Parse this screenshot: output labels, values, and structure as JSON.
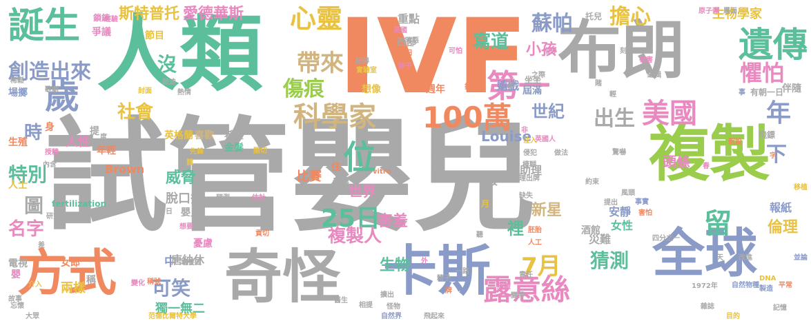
{
  "colors": {
    "gray": "#a9a9a9",
    "orange": "#f08860",
    "teal": "#5cbf9b",
    "blue": "#8a9bc8",
    "green": "#9acd4c",
    "pink": "#e889c0",
    "yellow": "#e8c240",
    "tan": "#d2b57e"
  },
  "words": [
    {
      "text": "試管嬰兒",
      "color": "gray"
    },
    {
      "text": "IVF",
      "color": "orange"
    },
    {
      "text": "人類",
      "color": "teal"
    },
    {
      "text": "布朗",
      "color": "gray"
    },
    {
      "text": "複製",
      "color": "green"
    },
    {
      "text": "奇怪",
      "color": "gray"
    },
    {
      "text": "卡斯",
      "color": "blue"
    },
    {
      "text": "全球",
      "color": "blue"
    },
    {
      "text": "方式",
      "color": "orange"
    },
    {
      "text": "遺傳",
      "color": "teal"
    },
    {
      "text": "誕生",
      "color": "teal"
    },
    {
      "text": "歲",
      "color": "blue"
    },
    {
      "text": "美國",
      "color": "pink"
    },
    {
      "text": "位",
      "color": "teal"
    },
    {
      "text": "第一",
      "color": "pink"
    },
    {
      "text": "100萬",
      "color": "orange"
    },
    {
      "text": "科學家",
      "color": "tan"
    },
    {
      "text": "露意絲",
      "color": "pink"
    },
    {
      "text": "心靈",
      "color": "yellow"
    },
    {
      "text": "留",
      "color": "teal"
    },
    {
      "text": "25日",
      "color": "teal"
    },
    {
      "text": "7月",
      "color": "yellow"
    },
    {
      "text": "創造出來",
      "color": "blue"
    },
    {
      "text": "斯特普托",
      "color": "yellow"
    },
    {
      "text": "愛德華斯",
      "color": "pink"
    },
    {
      "text": "帶來",
      "color": "tan"
    },
    {
      "text": "傷痕",
      "color": "green"
    },
    {
      "text": "蘇帕",
      "color": "blue"
    },
    {
      "text": "擔心",
      "color": "yellow"
    },
    {
      "text": "懼怕",
      "color": "pink"
    },
    {
      "text": "年",
      "color": "blue"
    },
    {
      "text": "出生",
      "color": "gray"
    },
    {
      "text": "下",
      "color": "blue"
    },
    {
      "text": "特別",
      "color": "teal"
    },
    {
      "text": "名字",
      "color": "pink"
    },
    {
      "text": "猜測",
      "color": "teal"
    },
    {
      "text": "可笑",
      "color": "blue"
    },
    {
      "text": "複製人",
      "color": "pink"
    },
    {
      "text": "世紀",
      "color": "blue"
    },
    {
      "text": "威脅",
      "color": "teal"
    },
    {
      "text": "新星",
      "color": "tan"
    },
    {
      "text": "生物",
      "color": "teal"
    },
    {
      "text": "倫理",
      "color": "yellow"
    },
    {
      "text": "社會",
      "color": "yellow"
    },
    {
      "text": "時",
      "color": "blue"
    },
    {
      "text": "沒",
      "color": "teal"
    },
    {
      "text": "圖",
      "color": "gray"
    },
    {
      "text": "寫道",
      "color": "teal"
    },
    {
      "text": "小孩",
      "color": "pink"
    },
    {
      "text": "生物學家",
      "color": "yellow"
    },
    {
      "text": "頭條",
      "color": "pink"
    },
    {
      "text": "世界",
      "color": "pink"
    },
    {
      "text": "裡",
      "color": "teal"
    },
    {
      "text": "害羞",
      "color": "pink"
    },
    {
      "text": "安靜",
      "color": "blue"
    },
    {
      "text": "女性",
      "color": "teal"
    },
    {
      "text": "報紙",
      "color": "blue"
    },
    {
      "text": "兩樣",
      "color": "yellow"
    },
    {
      "text": "獨一無二",
      "color": "teal"
    },
    {
      "text": "中",
      "color": "blue"
    },
    {
      "text": "英格蘭",
      "color": "yellow"
    },
    {
      "text": "喜歡",
      "color": "tan"
    },
    {
      "text": "希望",
      "color": "gray"
    },
    {
      "text": "人性",
      "color": "pink"
    },
    {
      "text": "生殖",
      "color": "orange"
    },
    {
      "text": "場擲",
      "color": "blue"
    },
    {
      "text": "脫口秀",
      "color": "gray"
    },
    {
      "text": "嬰兒",
      "color": "gray"
    },
    {
      "text": "憂慮",
      "color": "pink"
    },
    {
      "text": "唐納休",
      "color": "gray"
    },
    {
      "text": "女郎",
      "color": "orange"
    },
    {
      "text": "電視",
      "color": "gray"
    },
    {
      "text": "人士",
      "color": "yellow"
    },
    {
      "text": "比賽",
      "color": "orange"
    },
    {
      "text": "住",
      "color": "orange"
    },
    {
      "text": "酒館",
      "color": "gray"
    },
    {
      "text": "嬉戲",
      "color": "blue"
    },
    {
      "text": "屆滿",
      "color": "blue"
    },
    {
      "text": "助理",
      "color": "gray"
    },
    {
      "text": "有朝一日",
      "color": "gray"
    },
    {
      "text": "飛鏢",
      "color": "gray"
    },
    {
      "text": "伴隨",
      "color": "gray"
    },
    {
      "text": "災難",
      "color": "gray"
    },
    {
      "text": "Louise",
      "color": "blue"
    },
    {
      "text": "Brown",
      "color": "orange"
    },
    {
      "text": "金髮",
      "color": "teal"
    },
    {
      "text": "年輕",
      "color": "orange"
    },
    {
      "text": "稱",
      "color": "gray"
    },
    {
      "text": "身",
      "color": "orange"
    },
    {
      "text": "節目",
      "color": "yellow"
    },
    {
      "text": "爭議",
      "color": "pink"
    },
    {
      "text": "鎖鍊",
      "color": "pink"
    },
    {
      "text": "西部",
      "color": "gray"
    },
    {
      "text": "重點",
      "color": "gray"
    },
    {
      "text": "托兒",
      "color": "gray"
    },
    {
      "text": "坐坐",
      "color": "gray"
    },
    {
      "text": "前",
      "color": "gray"
    },
    {
      "text": "提",
      "color": "gray"
    },
    {
      "text": "嬰",
      "color": "pink"
    },
    {
      "text": "想像",
      "color": "yellow"
    },
    {
      "text": "週年",
      "color": "orange"
    },
    {
      "text": "般",
      "color": "gray"
    },
    {
      "text": "月",
      "color": "yellow"
    },
    {
      "text": "fertilization",
      "color": "teal"
    },
    {
      "text": "vitro",
      "color": "orange"
    },
    {
      "text": "發展",
      "color": "gray"
    },
    {
      "text": "1972年",
      "color": "gray"
    },
    {
      "text": "自然物種",
      "color": "blue"
    },
    {
      "text": "四分之一",
      "color": "gray"
    },
    {
      "text": "DNA",
      "color": "yellow"
    },
    {
      "text": "製造",
      "color": "blue"
    },
    {
      "text": "范德比爾特大學",
      "color": "yellow"
    },
    {
      "text": "自然界",
      "color": "blue"
    },
    {
      "text": "飛起來",
      "color": "gray"
    },
    {
      "text": "記憶",
      "color": "gray"
    },
    {
      "text": "雜誌",
      "color": "gray"
    },
    {
      "text": "醫生",
      "color": "gray"
    },
    {
      "text": "故事",
      "color": "gray"
    },
    {
      "text": "大眾",
      "color": "gray"
    },
    {
      "text": "目的",
      "color": "yellow"
    },
    {
      "text": "平常",
      "color": "orange"
    },
    {
      "text": "原子彈",
      "color": "pink"
    },
    {
      "text": "英國",
      "color": "pink"
    },
    {
      "text": "邪惡",
      "color": "gray"
    },
    {
      "text": "記得",
      "color": "gray"
    },
    {
      "text": "實驗室",
      "color": "yellow"
    },
    {
      "text": "明日",
      "color": "orange"
    },
    {
      "text": "卵子",
      "color": "pink"
    },
    {
      "text": "可怕",
      "color": "pink"
    },
    {
      "text": "指出",
      "color": "orange"
    },
    {
      "text": "指導",
      "color": "pink"
    },
    {
      "text": "刻意",
      "color": "gray"
    },
    {
      "text": "層面",
      "color": "gray"
    },
    {
      "text": "稀鬆",
      "color": "gray"
    },
    {
      "text": "歌劇",
      "color": "gray"
    },
    {
      "text": "封面",
      "color": "yellow"
    },
    {
      "text": "啟迪",
      "color": "gray"
    },
    {
      "text": "熱情",
      "color": "gray"
    },
    {
      "text": "先鋒",
      "color": "yellow"
    },
    {
      "text": "度",
      "color": "gray"
    },
    {
      "text": "授精",
      "color": "pink"
    },
    {
      "text": "內含",
      "color": "gray"
    },
    {
      "text": "體",
      "color": "yellow"
    },
    {
      "text": "關切",
      "color": "yellow"
    },
    {
      "text": "注入",
      "color": "yellow"
    },
    {
      "text": "侵犯",
      "color": "gray"
    },
    {
      "text": "模糊",
      "color": "gray"
    },
    {
      "text": "驚嚇",
      "color": "gray"
    },
    {
      "text": "賭",
      "color": "gray"
    },
    {
      "text": "輕",
      "color": "gray"
    },
    {
      "text": "編輯",
      "color": "gray"
    },
    {
      "text": "禍害",
      "color": "pink"
    },
    {
      "text": "事",
      "color": "blue"
    },
    {
      "text": "假設",
      "color": "orange"
    },
    {
      "text": "春",
      "color": "pink"
    },
    {
      "text": "字",
      "color": "orange"
    },
    {
      "text": "移植",
      "color": "yellow"
    },
    {
      "text": "改進",
      "color": "gray"
    },
    {
      "text": "天",
      "color": "gray"
    },
    {
      "text": "並論",
      "color": "blue"
    },
    {
      "text": "事實",
      "color": "blue"
    },
    {
      "text": "害怕",
      "color": "orange"
    },
    {
      "text": "提出",
      "color": "gray"
    },
    {
      "text": "風頭",
      "color": "gray"
    },
    {
      "text": "胚胎",
      "color": "orange"
    },
    {
      "text": "人工",
      "color": "orange"
    },
    {
      "text": "聽",
      "color": "gray"
    },
    {
      "text": "責任",
      "color": "gray"
    },
    {
      "text": "危險",
      "color": "pink"
    },
    {
      "text": "牌",
      "color": "orange"
    },
    {
      "text": "精子",
      "color": "gray"
    },
    {
      "text": "變得",
      "color": "gray"
    },
    {
      "text": "理出牌",
      "color": "gray"
    },
    {
      "text": "缺失",
      "color": "gray"
    },
    {
      "text": "非",
      "color": "pink"
    },
    {
      "text": "做法",
      "color": "gray"
    },
    {
      "text": "英國人",
      "color": "pink"
    },
    {
      "text": "約束",
      "color": "gray"
    },
    {
      "text": "差",
      "color": "gray"
    },
    {
      "text": "日",
      "color": "gray"
    },
    {
      "text": "研究",
      "color": "gray"
    },
    {
      "text": "想要",
      "color": "pink"
    },
    {
      "text": "培養皿",
      "color": "gray"
    },
    {
      "text": "預測",
      "color": "gray"
    },
    {
      "text": "估計",
      "color": "pink"
    },
    {
      "text": "貢切",
      "color": "orange"
    },
    {
      "text": "稱號",
      "color": "orange"
    },
    {
      "text": "變化",
      "color": "pink"
    },
    {
      "text": "介入",
      "color": "yellow"
    },
    {
      "text": "忘懷",
      "color": "gray"
    },
    {
      "text": "相提",
      "color": "gray"
    },
    {
      "text": "怪物",
      "color": "gray"
    },
    {
      "text": "擴出",
      "color": "gray"
    },
    {
      "text": "外",
      "color": "pink"
    },
    {
      "text": "一路",
      "color": "gray"
    },
    {
      "text": "之際",
      "color": "gray"
    },
    {
      "text": "經驗",
      "color": "pink"
    },
    {
      "text": "雨",
      "color": "gray"
    }
  ]
}
